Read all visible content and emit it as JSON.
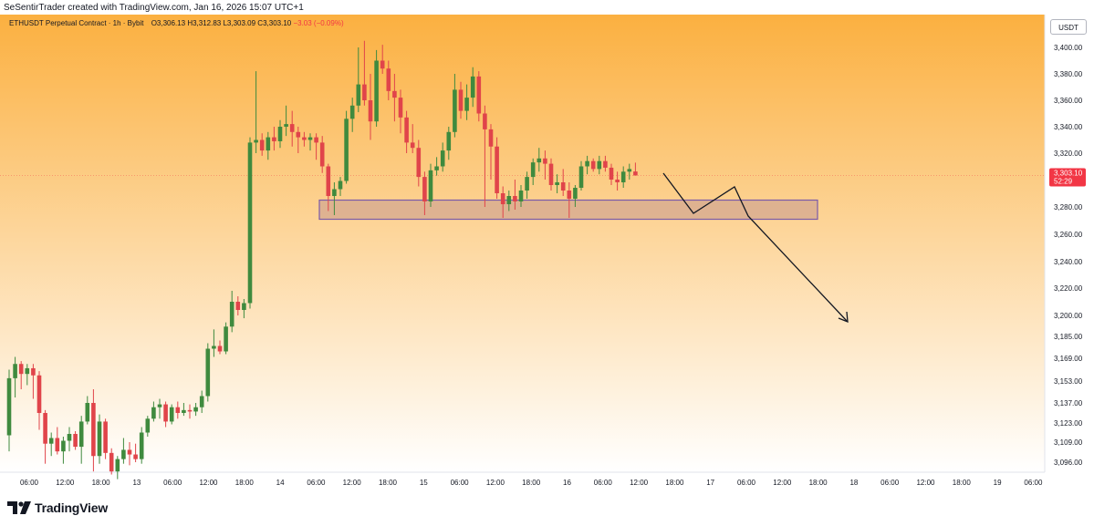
{
  "header": {
    "creator_line": "SeSentirTrader created with TradingView.com, Jan 16, 2026 15:07 UTC+1"
  },
  "legend": {
    "symbol": "ETHUSDT Perpetual Contract · 1h · Bybit",
    "open": "O3,306.13",
    "high": "H3,312.83",
    "low": "L3,303.09",
    "close": "C3,303.10",
    "change": "−3.03 (−0.09%)"
  },
  "currency_button": "USDT",
  "price_tag": {
    "price": "3,303.10",
    "countdown": "52:29"
  },
  "footer": {
    "brand": "TradingView"
  },
  "colors": {
    "up": "#3f8a3e",
    "down": "#e0444a",
    "zone_fill": "#d8ad91",
    "zone_border": "#7a5aa8",
    "bg_top": "#fbb040",
    "bg_bottom": "#ffffff",
    "price_label": "#f23645"
  },
  "chart_data": {
    "type": "candlestick",
    "timeframe": "1h",
    "y_ticks": [
      "3,400.00",
      "3,380.00",
      "3,360.00",
      "3,340.00",
      "3,320.00",
      "3,280.00",
      "3,260.00",
      "3,240.00",
      "3,220.00",
      "3,200.00",
      "3,185.00",
      "3,169.00",
      "3,153.00",
      "3,137.00",
      "3,123.00",
      "3,109.00",
      "3,096.00"
    ],
    "x_ticks": [
      "06:00",
      "12:00",
      "18:00",
      "13",
      "06:00",
      "12:00",
      "18:00",
      "14",
      "06:00",
      "12:00",
      "18:00",
      "15",
      "06:00",
      "12:00",
      "18:00",
      "16",
      "06:00",
      "12:00",
      "18:00",
      "17",
      "06:00",
      "12:00",
      "18:00",
      "18",
      "06:00",
      "12:00",
      "18:00",
      "19",
      "06:00"
    ],
    "candles": [
      [
        3114,
        3161,
        3103,
        3155
      ],
      [
        3155,
        3170,
        3141,
        3165
      ],
      [
        3165,
        3167,
        3147,
        3158
      ],
      [
        3158,
        3165,
        3150,
        3162
      ],
      [
        3162,
        3165,
        3140,
        3157
      ],
      [
        3157,
        3160,
        3118,
        3130
      ],
      [
        3130,
        3132,
        3095,
        3108
      ],
      [
        3108,
        3116,
        3100,
        3112
      ],
      [
        3112,
        3120,
        3101,
        3103
      ],
      [
        3103,
        3113,
        3095,
        3110
      ],
      [
        3110,
        3120,
        3103,
        3115
      ],
      [
        3115,
        3117,
        3104,
        3106
      ],
      [
        3106,
        3128,
        3095,
        3124
      ],
      [
        3124,
        3142,
        3122,
        3137
      ],
      [
        3137,
        3147,
        3090,
        3100
      ],
      [
        3100,
        3129,
        3095,
        3124
      ],
      [
        3124,
        3126,
        3098,
        3102
      ],
      [
        3102,
        3105,
        3088,
        3090
      ],
      [
        3090,
        3100,
        3085,
        3098
      ],
      [
        3098,
        3112,
        3095,
        3104
      ],
      [
        3104,
        3109,
        3094,
        3101
      ],
      [
        3101,
        3108,
        3096,
        3098
      ],
      [
        3098,
        3120,
        3095,
        3116
      ],
      [
        3116,
        3128,
        3113,
        3126
      ],
      [
        3126,
        3138,
        3124,
        3134
      ],
      [
        3134,
        3140,
        3126,
        3136
      ],
      [
        3136,
        3138,
        3120,
        3124
      ],
      [
        3124,
        3136,
        3122,
        3134
      ],
      [
        3134,
        3138,
        3126,
        3130
      ],
      [
        3130,
        3137,
        3128,
        3132
      ],
      [
        3132,
        3136,
        3126,
        3131
      ],
      [
        3131,
        3137,
        3128,
        3134
      ],
      [
        3134,
        3146,
        3130,
        3142
      ],
      [
        3142,
        3180,
        3138,
        3176
      ],
      [
        3176,
        3190,
        3170,
        3178
      ],
      [
        3178,
        3182,
        3172,
        3174
      ],
      [
        3174,
        3195,
        3172,
        3192
      ],
      [
        3192,
        3218,
        3188,
        3210
      ],
      [
        3210,
        3214,
        3200,
        3204
      ],
      [
        3204,
        3212,
        3198,
        3209
      ],
      [
        3209,
        3332,
        3205,
        3328
      ],
      [
        3328,
        3382,
        3320,
        3330
      ],
      [
        3330,
        3335,
        3318,
        3322
      ],
      [
        3322,
        3336,
        3315,
        3332
      ],
      [
        3332,
        3340,
        3322,
        3329
      ],
      [
        3329,
        3345,
        3324,
        3340
      ],
      [
        3340,
        3356,
        3333,
        3342
      ],
      [
        3342,
        3352,
        3325,
        3336
      ],
      [
        3336,
        3340,
        3320,
        3332
      ],
      [
        3332,
        3336,
        3325,
        3330
      ],
      [
        3330,
        3335,
        3322,
        3332
      ],
      [
        3332,
        3335,
        3315,
        3328
      ],
      [
        3328,
        3333,
        3305,
        3310
      ],
      [
        3310,
        3312,
        3277,
        3288
      ],
      [
        3288,
        3298,
        3274,
        3293
      ],
      [
        3293,
        3302,
        3288,
        3299
      ],
      [
        3299,
        3352,
        3297,
        3346
      ],
      [
        3346,
        3362,
        3336,
        3356
      ],
      [
        3356,
        3400,
        3351,
        3372
      ],
      [
        3372,
        3405,
        3356,
        3360
      ],
      [
        3360,
        3380,
        3330,
        3344
      ],
      [
        3344,
        3398,
        3340,
        3390
      ],
      [
        3390,
        3402,
        3380,
        3384
      ],
      [
        3384,
        3390,
        3360,
        3367
      ],
      [
        3367,
        3380,
        3344,
        3362
      ],
      [
        3362,
        3368,
        3335,
        3347
      ],
      [
        3347,
        3352,
        3320,
        3328
      ],
      [
        3328,
        3342,
        3320,
        3324
      ],
      [
        3324,
        3330,
        3295,
        3302
      ],
      [
        3302,
        3306,
        3274,
        3284
      ],
      [
        3284,
        3312,
        3280,
        3307
      ],
      [
        3307,
        3317,
        3303,
        3310
      ],
      [
        3310,
        3328,
        3306,
        3322
      ],
      [
        3322,
        3340,
        3315,
        3336
      ],
      [
        3336,
        3380,
        3332,
        3368
      ],
      [
        3368,
        3374,
        3346,
        3352
      ],
      [
        3352,
        3372,
        3345,
        3362
      ],
      [
        3362,
        3385,
        3355,
        3378
      ],
      [
        3378,
        3382,
        3344,
        3350
      ],
      [
        3350,
        3356,
        3280,
        3338
      ],
      [
        3338,
        3342,
        3300,
        3325
      ],
      [
        3325,
        3332,
        3286,
        3290
      ],
      [
        3290,
        3295,
        3272,
        3282
      ],
      [
        3282,
        3292,
        3277,
        3288
      ],
      [
        3288,
        3300,
        3278,
        3284
      ],
      [
        3284,
        3296,
        3280,
        3292
      ],
      [
        3292,
        3306,
        3286,
        3302
      ],
      [
        3302,
        3316,
        3296,
        3313
      ],
      [
        3313,
        3324,
        3306,
        3316
      ],
      [
        3316,
        3322,
        3300,
        3312
      ],
      [
        3312,
        3316,
        3292,
        3296
      ],
      [
        3296,
        3304,
        3290,
        3298
      ],
      [
        3298,
        3308,
        3288,
        3292
      ],
      [
        3292,
        3298,
        3272,
        3286
      ],
      [
        3286,
        3296,
        3280,
        3294
      ],
      [
        3294,
        3314,
        3292,
        3310
      ],
      [
        3310,
        3318,
        3304,
        3314
      ],
      [
        3314,
        3316,
        3306,
        3308
      ],
      [
        3308,
        3318,
        3304,
        3314
      ],
      [
        3314,
        3318,
        3306,
        3309
      ],
      [
        3309,
        3312,
        3296,
        3300
      ],
      [
        3300,
        3306,
        3292,
        3298
      ],
      [
        3298,
        3310,
        3294,
        3306
      ],
      [
        3306,
        3312,
        3300,
        3308
      ],
      [
        3306.13,
        3312.83,
        3303.09,
        3303.1
      ]
    ],
    "support_zone": [
      3271,
      3285
    ],
    "last_price": 3303.1
  }
}
